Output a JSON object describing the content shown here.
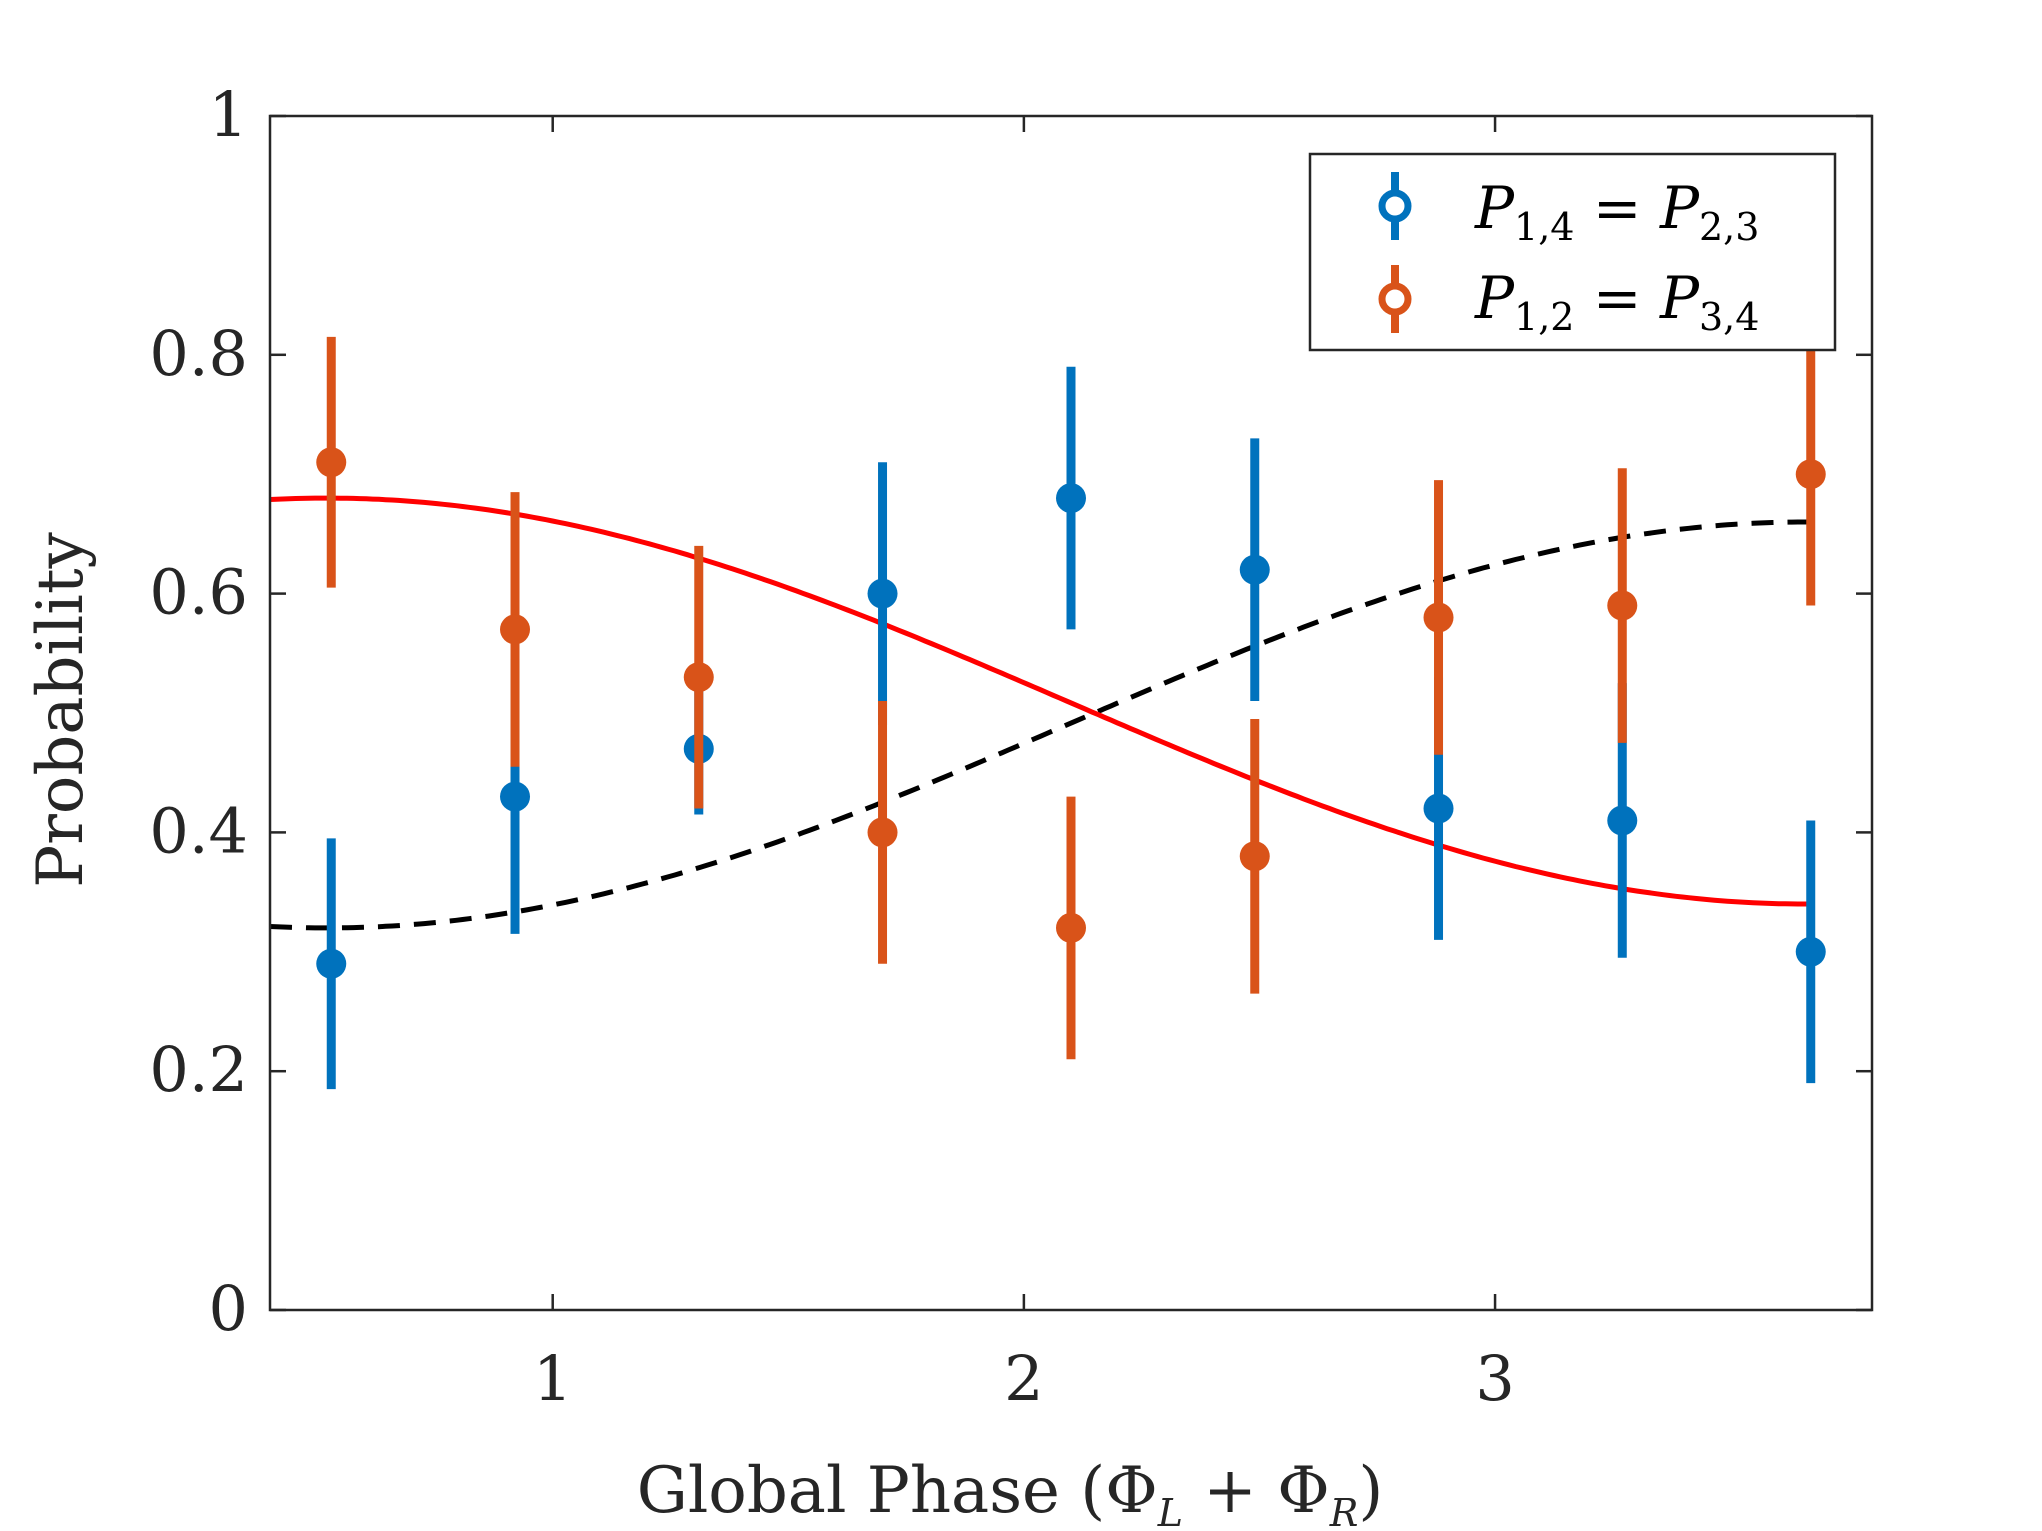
{
  "chart_data": {
    "type": "scatter",
    "xlabel": {
      "prefix": "Global Phase (",
      "sym1": "Φ",
      "sub1": "L",
      "op": " + ",
      "sym2": "Φ",
      "sub2": "R",
      "suffix": ")"
    },
    "ylabel": "Probability",
    "xlim": [
      0.4,
      3.8
    ],
    "ylim": [
      0,
      1
    ],
    "xticks": [
      1,
      2,
      3
    ],
    "yticks": [
      0,
      0.2,
      0.4,
      0.6,
      0.8,
      1
    ],
    "ytick_labels": [
      "0",
      "0.2",
      "0.4",
      "0.6",
      "0.8",
      "1"
    ],
    "xtick_labels": [
      "1",
      "2",
      "3"
    ],
    "grid": false,
    "legend_position": "top-right",
    "series": [
      {
        "name": "P1,4 = P2,3",
        "legend": {
          "a": "P",
          "a_sub": "1,4",
          "eq": " = ",
          "b": "P",
          "b_sub": "2,3"
        },
        "color": "#0072BD",
        "x": [
          0.53,
          0.92,
          1.31,
          1.7,
          2.1,
          2.49,
          2.88,
          3.27,
          3.67
        ],
        "y": [
          0.29,
          0.43,
          0.47,
          0.6,
          0.68,
          0.62,
          0.42,
          0.41,
          0.3
        ],
        "err": [
          0.105,
          0.115,
          0.055,
          0.11,
          0.11,
          0.11,
          0.11,
          0.115,
          0.11
        ]
      },
      {
        "name": "P1,2 = P3,4",
        "legend": {
          "a": "P",
          "a_sub": "1,2",
          "eq": " = ",
          "b": "P",
          "b_sub": "3,4"
        },
        "color": "#D95319",
        "x": [
          0.53,
          0.92,
          1.31,
          1.7,
          2.1,
          2.49,
          2.88,
          3.27,
          3.67
        ],
        "y": [
          0.71,
          0.57,
          0.53,
          0.4,
          0.32,
          0.38,
          0.58,
          0.59,
          0.7
        ],
        "err": [
          0.105,
          0.115,
          0.11,
          0.11,
          0.11,
          0.115,
          0.115,
          0.115,
          0.11
        ]
      }
    ],
    "fits": [
      {
        "style": "dashed",
        "color": "#000000",
        "model": "offset - amplitude*cos(x - phase)",
        "offset": 0.49,
        "amplitude": 0.17,
        "phase": 0.52,
        "x_range": [
          0.4,
          3.67
        ]
      },
      {
        "style": "solid",
        "color": "#FF0000",
        "model": "offset + amplitude*cos(x - phase)",
        "offset": 0.51,
        "amplitude": 0.17,
        "phase": 0.52,
        "x_range": [
          0.4,
          3.67
        ]
      }
    ]
  }
}
